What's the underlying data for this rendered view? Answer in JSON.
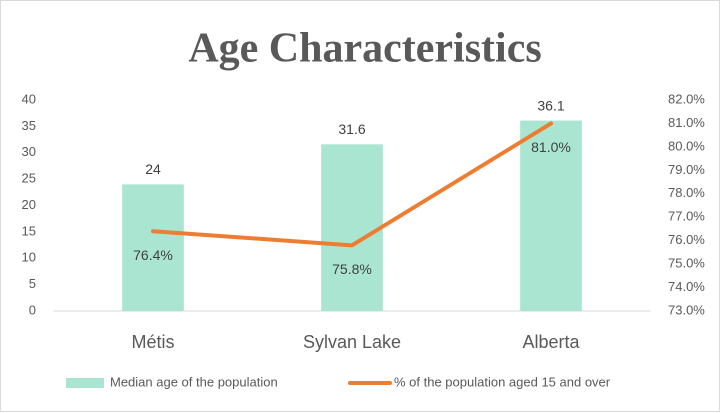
{
  "chart_data": {
    "type": "bar",
    "title": "Age Characteristics",
    "categories": [
      "Métis",
      "Sylvan Lake",
      "Alberta"
    ],
    "series": [
      {
        "name": "Median age of the population",
        "type": "bar",
        "color": "#a9e5d1",
        "values": [
          24,
          31.6,
          36.1
        ]
      },
      {
        "name": "% of the population aged 15 and over",
        "type": "line",
        "axis": "y2",
        "color": "#ed7d31",
        "values": [
          76.4,
          75.8,
          81.0
        ],
        "value_labels": [
          "76.4%",
          "75.8%",
          "81.0%"
        ]
      }
    ],
    "ylim": [
      0,
      40
    ],
    "yticks": [
      0,
      5,
      10,
      15,
      20,
      25,
      30,
      35,
      40
    ],
    "y2lim": [
      73,
      82
    ],
    "y2ticks": [
      {
        "value": 73,
        "label": "73.0%"
      },
      {
        "value": 74,
        "label": "74.0%"
      },
      {
        "value": 75,
        "label": "75.0%"
      },
      {
        "value": 76,
        "label": "76.0%"
      },
      {
        "value": 77,
        "label": "77.0%"
      },
      {
        "value": 78,
        "label": "78.0%"
      },
      {
        "value": 79,
        "label": "79.0%"
      },
      {
        "value": 80,
        "label": "80.0%"
      },
      {
        "value": 81,
        "label": "81.0%"
      },
      {
        "value": 82,
        "label": "82.0%"
      }
    ],
    "grid": false,
    "legend": "bottom"
  }
}
